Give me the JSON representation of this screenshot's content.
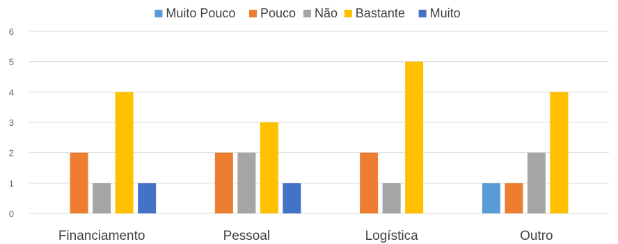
{
  "chart_data": {
    "type": "bar",
    "categories": [
      "Financiamento",
      "Pessoal",
      "Logística",
      "Outro"
    ],
    "series": [
      {
        "name": "Muito Pouco",
        "color": "#5b9bd5",
        "values": [
          0,
          0,
          0,
          1
        ]
      },
      {
        "name": "Pouco",
        "color": "#ed7d31",
        "values": [
          2,
          2,
          2,
          1
        ]
      },
      {
        "name": "Não",
        "color": "#a5a5a5",
        "values": [
          1,
          2,
          1,
          2
        ]
      },
      {
        "name": "Bastante",
        "color": "#ffc000",
        "values": [
          4,
          3,
          5,
          4
        ]
      },
      {
        "name": "Muito",
        "color": "#4472c4",
        "values": [
          1,
          1,
          0,
          0
        ]
      }
    ],
    "ylim": [
      0,
      6
    ],
    "yticks": [
      0,
      1,
      2,
      3,
      4,
      5,
      6
    ],
    "grid": true,
    "legend_position": "top"
  }
}
